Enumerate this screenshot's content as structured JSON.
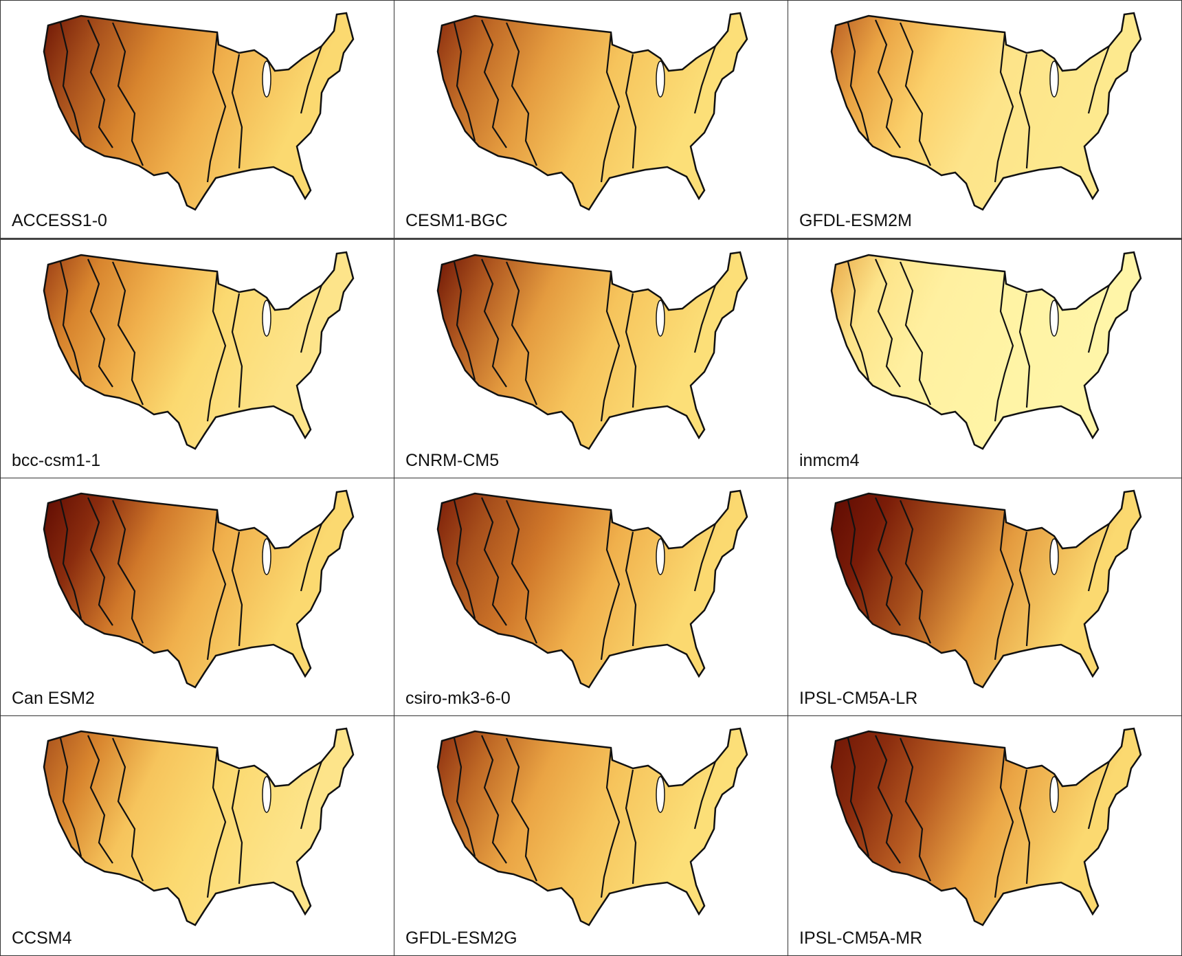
{
  "colormap": [
    "#fff5a0",
    "#fbd970",
    "#f0b04c",
    "#d8852e",
    "#a8501c",
    "#6e1505"
  ],
  "panels": [
    {
      "label": "ACCESS1-0",
      "shades": [
        "#6e1505",
        "#a8501c",
        "#d8852e",
        "#f0b04c",
        "#fbd970"
      ]
    },
    {
      "label": "CESM1-BGC",
      "shades": [
        "#8a2c0e",
        "#c06a26",
        "#e49b3f",
        "#f6c45c",
        "#fcdf78"
      ]
    },
    {
      "label": "GFDL-ESM2M",
      "shades": [
        "#b85c22",
        "#eaa444",
        "#fbd06a",
        "#fde48a",
        "#fde98e"
      ]
    },
    {
      "label": "bcc-csm1-1",
      "shades": [
        "#9a3c14",
        "#d8852e",
        "#f0b04c",
        "#fbd970",
        "#fde48a"
      ]
    },
    {
      "label": "CNRM-CM5",
      "shades": [
        "#6e1505",
        "#b05820",
        "#e49b3f",
        "#f6c45c",
        "#fcdf78"
      ]
    },
    {
      "label": "inmcm4",
      "shades": [
        "#e8a848",
        "#fde48a",
        "#fff0a0",
        "#fff3a4",
        "#fff5a8"
      ]
    },
    {
      "label": "Can ESM2",
      "shades": [
        "#5e0a02",
        "#8a2c0e",
        "#d0782a",
        "#f0b04c",
        "#fbd970"
      ]
    },
    {
      "label": "csiro-mk3-6-0",
      "shades": [
        "#7a1c08",
        "#a8501c",
        "#d0782a",
        "#f0b04c",
        "#fbd970"
      ]
    },
    {
      "label": "IPSL-CM5A-LR",
      "shades": [
        "#5e0a02",
        "#7a1c08",
        "#a8501c",
        "#e49b3f",
        "#fbd970"
      ]
    },
    {
      "label": "CCSM4",
      "shades": [
        "#a8501c",
        "#d8852e",
        "#f6c45c",
        "#fbd970",
        "#fde48a"
      ]
    },
    {
      "label": "GFDL-ESM2G",
      "shades": [
        "#8a2c0e",
        "#c06a26",
        "#eaa444",
        "#f6c45c",
        "#fcdf78"
      ]
    },
    {
      "label": "IPSL-CM5A-MR",
      "shades": [
        "#6e1505",
        "#8a2c0e",
        "#b85c22",
        "#eaa444",
        "#fbd970"
      ]
    }
  ]
}
